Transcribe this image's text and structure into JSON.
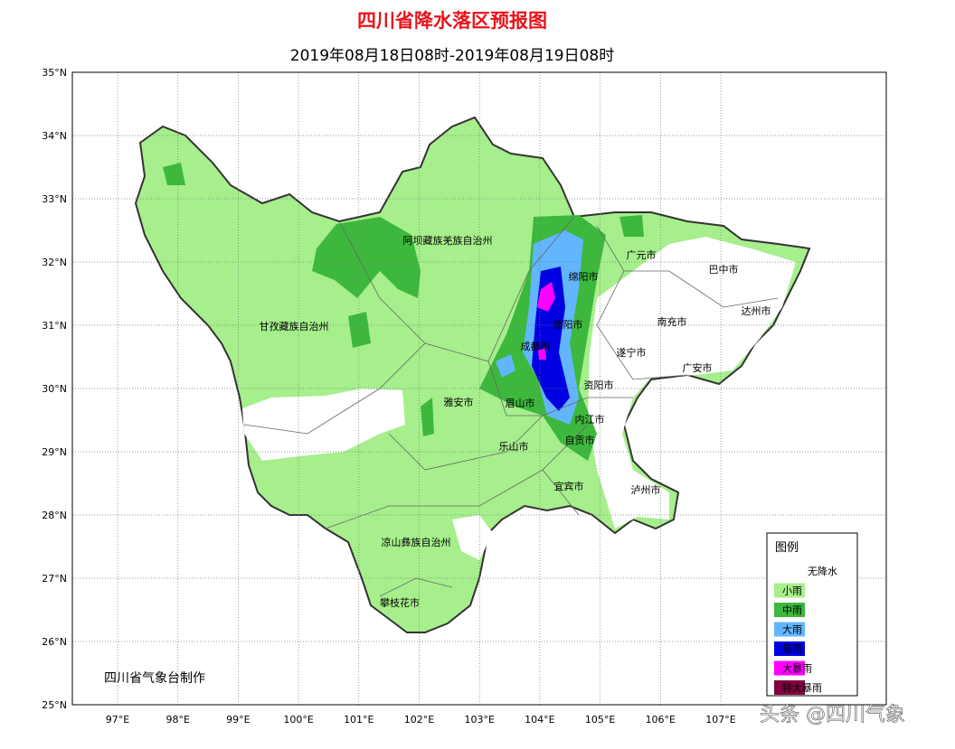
{
  "header": {
    "title": "四川省降水落区预报图",
    "subtitle": "2019年08月18日08时-2019年08月19日08时"
  },
  "latitudes": [
    {
      "value": 35,
      "label": "35°N"
    },
    {
      "value": 34,
      "label": "34°N"
    },
    {
      "value": 33,
      "label": "33°N"
    },
    {
      "value": 32,
      "label": "32°N"
    },
    {
      "value": 31,
      "label": "31°N"
    },
    {
      "value": 30,
      "label": "30°N"
    },
    {
      "value": 29,
      "label": "29°N"
    },
    {
      "value": 28,
      "label": "28°N"
    },
    {
      "value": 27,
      "label": "27°N"
    },
    {
      "value": 26,
      "label": "26°N"
    },
    {
      "value": 25,
      "label": "25°N"
    }
  ],
  "longitudes": [
    {
      "value": 97,
      "label": "97°E"
    },
    {
      "value": 98,
      "label": "98°E"
    },
    {
      "value": 99,
      "label": "99°E"
    },
    {
      "value": 100,
      "label": "100°E"
    },
    {
      "value": 101,
      "label": "101°E"
    },
    {
      "value": 102,
      "label": "102°E"
    },
    {
      "value": 103,
      "label": "103°E"
    },
    {
      "value": 104,
      "label": "104°E"
    },
    {
      "value": 105,
      "label": "105°E"
    },
    {
      "value": 106,
      "label": "106°E"
    },
    {
      "value": 107,
      "label": "107°E"
    }
  ],
  "places": [
    "阿坝藏族羌族自治州",
    "广元市",
    "巴中市",
    "绵阳市",
    "达州市",
    "甘孜藏族自治州",
    "德阳市",
    "南充市",
    "成都市",
    "遂宁市",
    "广安市",
    "资阳市",
    "雅安市",
    "眉山市",
    "内江市",
    "自贡市",
    "乐山市",
    "宜宾市",
    "泸州市",
    "凉山彝族自治州",
    "攀枝花市"
  ],
  "legend": {
    "title": "图例",
    "items": [
      {
        "label": "无降水",
        "color": "#ffffff"
      },
      {
        "label": "小雨",
        "color": "#a6ef8c"
      },
      {
        "label": "中雨",
        "color": "#3db83d"
      },
      {
        "label": "大雨",
        "color": "#62b6fe"
      },
      {
        "label": "暴雨",
        "color": "#0000e0"
      },
      {
        "label": "大暴雨",
        "color": "#fe00fe"
      },
      {
        "label": "特大暴雨",
        "color": "#800040"
      }
    ]
  },
  "credit": "四川省气象台制作",
  "watermark": "头条 @四川气象"
}
